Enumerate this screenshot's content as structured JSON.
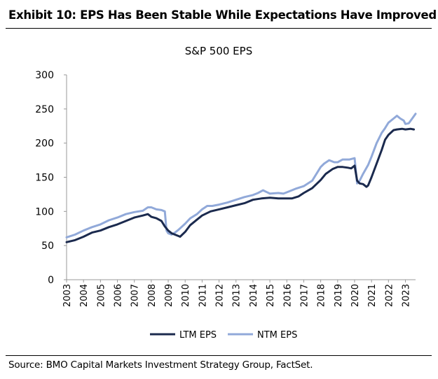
{
  "exhibit": {
    "title": "Exhibit 10: EPS Has Been Stable While Expectations Have Improved",
    "source": "Source: BMO Capital Markets Investment Strategy Group, FactSet."
  },
  "chart_data": {
    "type": "line",
    "title": "S&P 500 EPS",
    "xlabel": "",
    "ylabel": "",
    "ylim": [
      0,
      300
    ],
    "yticks": [
      "0",
      "50",
      "100",
      "150",
      "200",
      "250",
      "300"
    ],
    "xlim": [
      2003,
      2023.6
    ],
    "xticks": [
      "2003",
      "2004",
      "2005",
      "2006",
      "2007",
      "2008",
      "2009",
      "2010",
      "2011",
      "2012",
      "2013",
      "2014",
      "2015",
      "2016",
      "2017",
      "2018",
      "2019",
      "2020",
      "2021",
      "2022",
      "2023"
    ],
    "grid": false,
    "legend_position": "bottom",
    "series": [
      {
        "name": "LTM EPS",
        "color": "#1b2a4e",
        "x": [
          2003.0,
          2003.5,
          2004.0,
          2004.5,
          2005.0,
          2005.5,
          2006.0,
          2006.5,
          2007.0,
          2007.5,
          2007.8,
          2008.0,
          2008.3,
          2008.6,
          2008.8,
          2009.0,
          2009.2,
          2009.5,
          2009.7,
          2010.0,
          2010.3,
          2010.7,
          2011.0,
          2011.5,
          2012.0,
          2012.5,
          2013.0,
          2013.5,
          2014.0,
          2014.5,
          2015.0,
          2015.5,
          2016.0,
          2016.3,
          2016.7,
          2017.0,
          2017.5,
          2018.0,
          2018.3,
          2018.7,
          2019.0,
          2019.3,
          2019.6,
          2019.8,
          2020.0,
          2020.15,
          2020.3,
          2020.5,
          2020.7,
          2020.8,
          2021.0,
          2021.3,
          2021.6,
          2021.8,
          2022.0,
          2022.3,
          2022.5,
          2022.8,
          2023.0,
          2023.3,
          2023.5
        ],
        "values": [
          55,
          58,
          63,
          69,
          72,
          77,
          81,
          86,
          91,
          94,
          96,
          92,
          90,
          86,
          78,
          72,
          68,
          65,
          63,
          70,
          80,
          88,
          94,
          100,
          103,
          106,
          109,
          112,
          117,
          119,
          120,
          119,
          119,
          119,
          122,
          127,
          134,
          146,
          155,
          162,
          165,
          165,
          164,
          163,
          167,
          145,
          141,
          140,
          136,
          138,
          150,
          170,
          190,
          205,
          212,
          219,
          220,
          221,
          220,
          221,
          220
        ]
      },
      {
        "name": "NTM EPS",
        "color": "#91a9d9",
        "x": [
          2003.0,
          2003.5,
          2004.0,
          2004.5,
          2005.0,
          2005.5,
          2006.0,
          2006.5,
          2007.0,
          2007.5,
          2007.8,
          2008.0,
          2008.3,
          2008.6,
          2008.8,
          2008.9,
          2009.0,
          2009.2,
          2009.4,
          2009.6,
          2010.0,
          2010.3,
          2010.7,
          2011.0,
          2011.3,
          2011.6,
          2012.0,
          2012.5,
          2013.0,
          2013.5,
          2014.0,
          2014.3,
          2014.6,
          2015.0,
          2015.5,
          2015.8,
          2016.0,
          2016.5,
          2017.0,
          2017.5,
          2018.0,
          2018.2,
          2018.5,
          2018.8,
          2019.0,
          2019.3,
          2019.7,
          2020.0,
          2020.15,
          2020.3,
          2020.5,
          2020.8,
          2021.0,
          2021.3,
          2021.6,
          2021.8,
          2022.0,
          2022.3,
          2022.5,
          2022.7,
          2022.9,
          2023.0,
          2023.2,
          2023.4,
          2023.6
        ],
        "values": [
          62,
          66,
          72,
          77,
          81,
          87,
          91,
          96,
          99,
          101,
          106,
          106,
          103,
          102,
          100,
          72,
          68,
          66,
          69,
          73,
          82,
          90,
          96,
          103,
          108,
          108,
          110,
          113,
          117,
          121,
          124,
          127,
          131,
          126,
          127,
          126,
          128,
          133,
          137,
          145,
          165,
          170,
          175,
          172,
          172,
          176,
          176,
          178,
          141,
          145,
          155,
          168,
          180,
          200,
          215,
          222,
          230,
          236,
          240,
          236,
          233,
          228,
          229,
          236,
          243
        ]
      }
    ]
  }
}
